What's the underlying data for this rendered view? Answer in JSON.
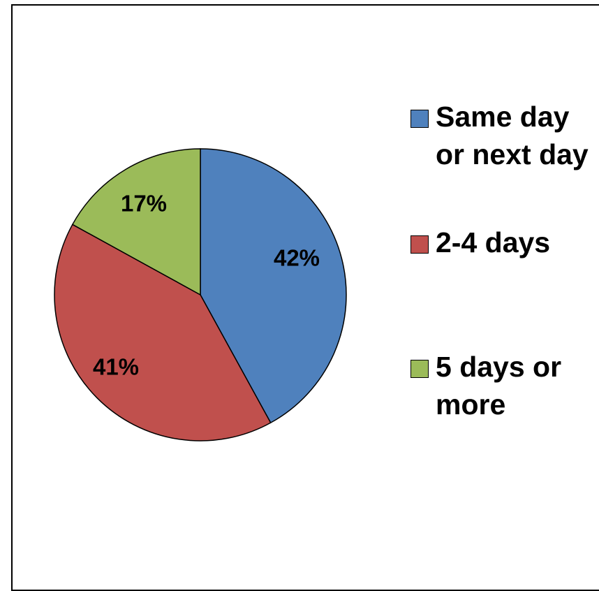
{
  "chart_data": {
    "type": "pie",
    "slices": [
      {
        "label": "Same day or next day",
        "value": 42,
        "display": "42%",
        "color": "#4f81bd"
      },
      {
        "label": "2-4 days",
        "value": 41,
        "display": "41%",
        "color": "#c0504d"
      },
      {
        "label": "5 days or more",
        "value": 17,
        "display": "17%",
        "color": "#9bbb59"
      }
    ],
    "legend_position": "right"
  }
}
